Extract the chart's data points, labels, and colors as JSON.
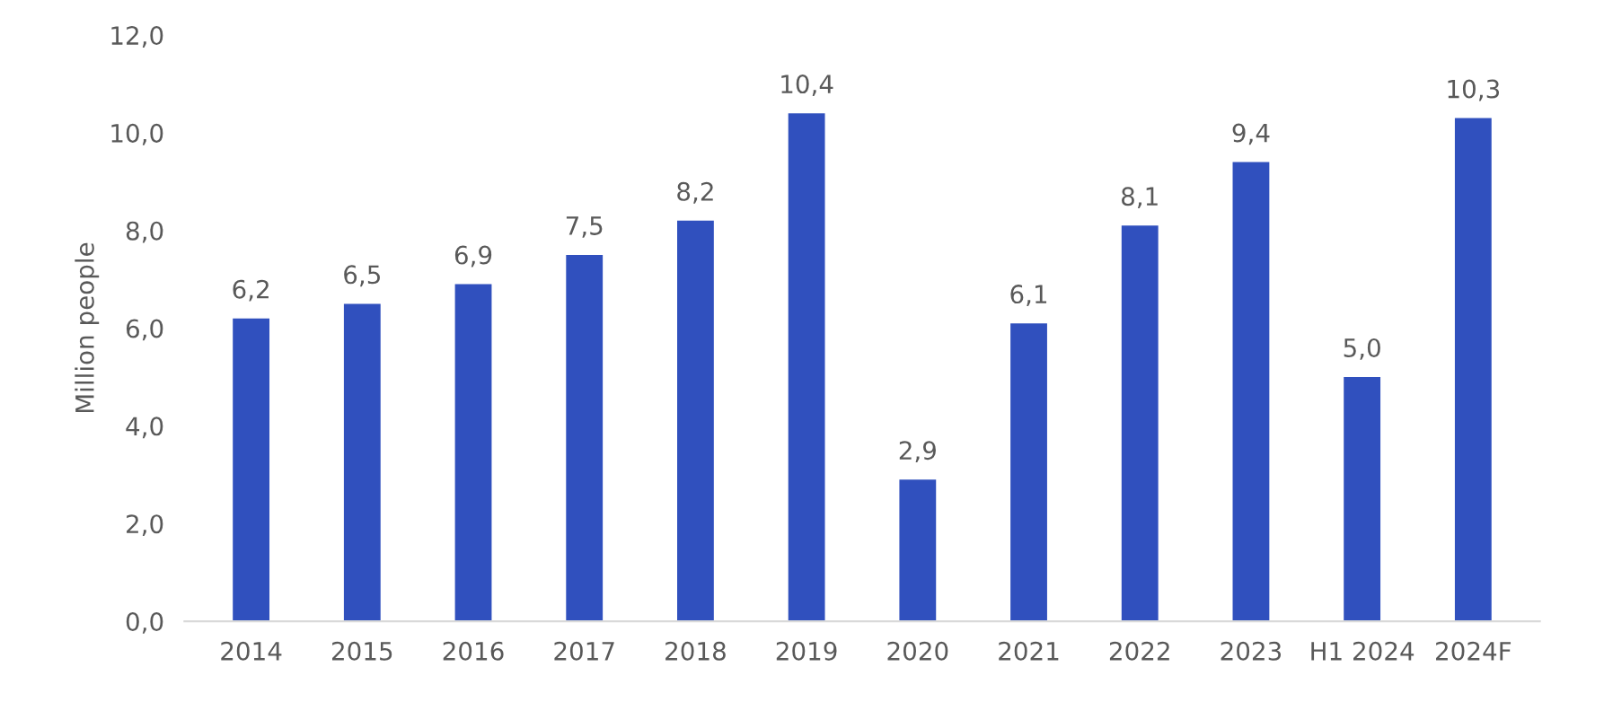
{
  "chart_data": {
    "type": "bar",
    "ylabel": "Million people",
    "categories": [
      "2014",
      "2015",
      "2016",
      "2017",
      "2018",
      "2019",
      "2020",
      "2021",
      "2022",
      "2023",
      "H1 2024",
      "2024F"
    ],
    "values": [
      6.2,
      6.5,
      6.9,
      7.5,
      8.2,
      10.4,
      2.9,
      6.1,
      8.1,
      9.4,
      5.0,
      10.3
    ],
    "value_labels": [
      "6,2",
      "6,5",
      "6,9",
      "7,5",
      "8,2",
      "10,4",
      "2,9",
      "6,1",
      "8,1",
      "9,4",
      "5,0",
      "10,3"
    ],
    "color": "#3050be",
    "ylim": [
      0,
      12
    ],
    "yticks": [
      {
        "value": 0,
        "label": "0,0"
      },
      {
        "value": 2,
        "label": "2,0"
      },
      {
        "value": 4,
        "label": "4,0"
      },
      {
        "value": 6,
        "label": "6,0"
      },
      {
        "value": 8,
        "label": "8,0"
      },
      {
        "value": 10,
        "label": "10,0"
      },
      {
        "value": 12,
        "label": "12,0"
      }
    ],
    "grid": false
  }
}
